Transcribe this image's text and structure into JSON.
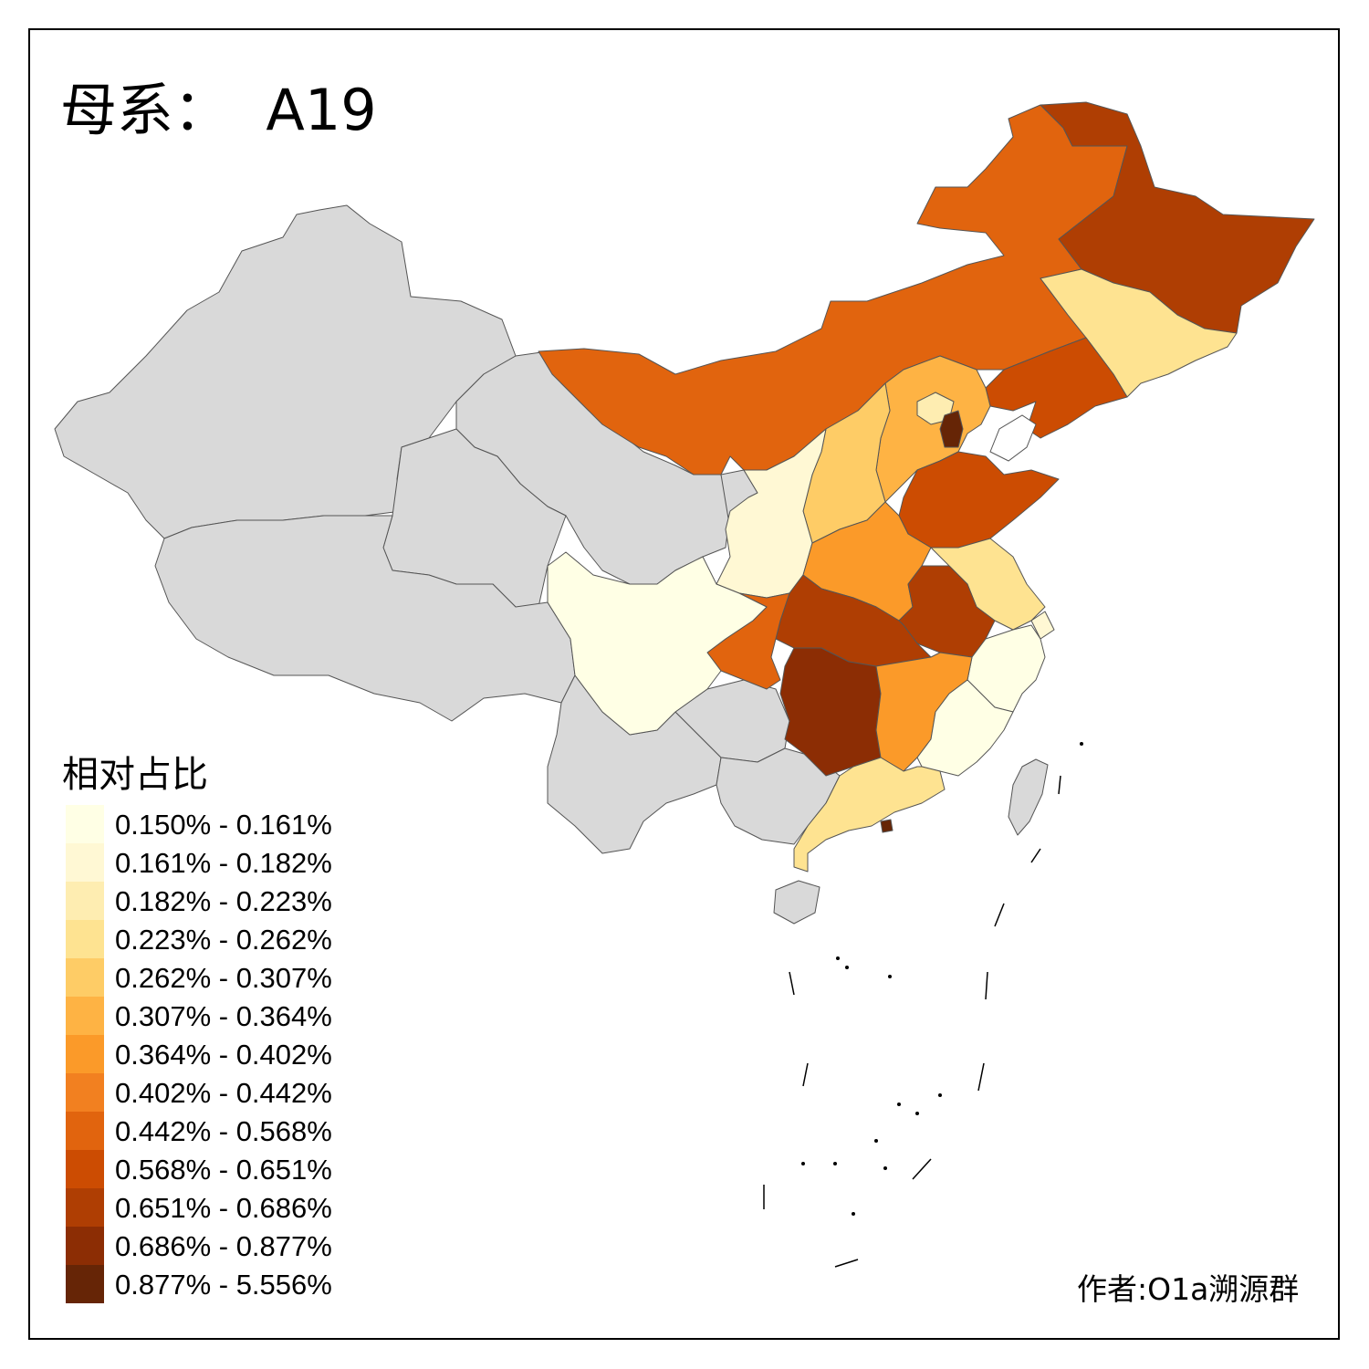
{
  "title": "母系：  A19",
  "legend": {
    "title": "相对占比",
    "items": [
      {
        "label": "0.150% - 0.161%",
        "color": "#FFFFE5"
      },
      {
        "label": "0.161% - 0.182%",
        "color": "#FFF8D4"
      },
      {
        "label": "0.182% - 0.223%",
        "color": "#FEEDB1"
      },
      {
        "label": "0.223% - 0.262%",
        "color": "#FEE391"
      },
      {
        "label": "0.262% - 0.307%",
        "color": "#FECC66"
      },
      {
        "label": "0.307% - 0.364%",
        "color": "#FEB344"
      },
      {
        "label": "0.364% - 0.402%",
        "color": "#FB9A29"
      },
      {
        "label": "0.402% - 0.442%",
        "color": "#F28020"
      },
      {
        "label": "0.442% - 0.568%",
        "color": "#E1640E"
      },
      {
        "label": "0.568% - 0.651%",
        "color": "#CC4C02"
      },
      {
        "label": "0.651% - 0.686%",
        "color": "#AF3E03"
      },
      {
        "label": "0.686% - 0.877%",
        "color": "#8C2D04"
      },
      {
        "label": "0.877% - 5.556%",
        "color": "#662506"
      }
    ]
  },
  "no_data_color": "#D9D9D9",
  "author": "作者:O1a溯源群"
}
